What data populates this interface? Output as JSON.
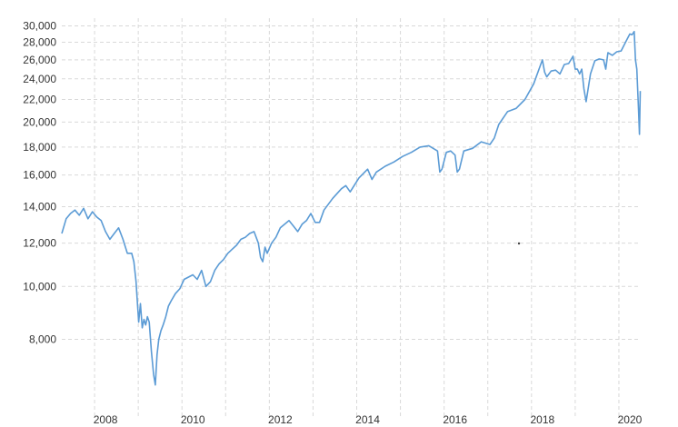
{
  "chart_data": {
    "type": "line",
    "title": "",
    "xlabel": "",
    "ylabel": "",
    "y_scale": "log",
    "grid": true,
    "legend": "none",
    "color": "#5b9bd5",
    "xlim": [
      2007.0,
      2020.25
    ],
    "ylim": [
      6200,
      31000
    ],
    "x_ticks": [
      2008,
      2010,
      2012,
      2014,
      2016,
      2018,
      2020
    ],
    "x_tick_labels": [
      "2008",
      "2010",
      "2012",
      "2014",
      "2016",
      "2018",
      "2020"
    ],
    "y_ticks": [
      8000,
      10000,
      12000,
      14000,
      16000,
      18000,
      20000,
      22000,
      24000,
      26000,
      28000,
      30000
    ],
    "y_tick_labels": [
      "8,000",
      "10,000",
      "12,000",
      "14,000",
      "16,000",
      "18,000",
      "20,000",
      "22,000",
      "24,000",
      "26,000",
      "28,000",
      "30,000"
    ],
    "series": [
      {
        "x": [
          2007.0,
          2007.1,
          2007.2,
          2007.3,
          2007.4,
          2007.5,
          2007.6,
          2007.7,
          2007.8,
          2007.9,
          2008.0,
          2008.1,
          2008.2,
          2008.3,
          2008.4,
          2008.5,
          2008.6,
          2008.65,
          2008.7,
          2008.72,
          2008.76,
          2008.8,
          2008.84,
          2008.88,
          2008.92,
          2008.96,
          2009.0,
          2009.05,
          2009.1,
          2009.14,
          2009.18,
          2009.22,
          2009.27,
          2009.32,
          2009.38,
          2009.44,
          2009.5,
          2009.6,
          2009.7,
          2009.8,
          2009.9,
          2010.0,
          2010.1,
          2010.2,
          2010.3,
          2010.4,
          2010.5,
          2010.6,
          2010.7,
          2010.8,
          2010.9,
          2011.0,
          2011.1,
          2011.2,
          2011.3,
          2011.4,
          2011.5,
          2011.55,
          2011.6,
          2011.65,
          2011.7,
          2011.8,
          2011.9,
          2012.0,
          2012.1,
          2012.2,
          2012.3,
          2012.4,
          2012.5,
          2012.6,
          2012.7,
          2012.8,
          2012.9,
          2013.0,
          2013.2,
          2013.4,
          2013.5,
          2013.6,
          2013.8,
          2014.0,
          2014.1,
          2014.2,
          2014.4,
          2014.6,
          2014.8,
          2015.0,
          2015.2,
          2015.4,
          2015.5,
          2015.6,
          2015.65,
          2015.7,
          2015.8,
          2015.9,
          2016.0,
          2016.05,
          2016.1,
          2016.2,
          2016.4,
          2016.6,
          2016.8,
          2016.9,
          2017.0,
          2017.2,
          2017.4,
          2017.6,
          2017.8,
          2018.0,
          2018.05,
          2018.1,
          2018.2,
          2018.3,
          2018.4,
          2018.5,
          2018.6,
          2018.7,
          2018.75,
          2018.8,
          2018.85,
          2018.9,
          2018.95,
          2019.0,
          2019.1,
          2019.2,
          2019.3,
          2019.4,
          2019.45,
          2019.5,
          2019.6,
          2019.7,
          2019.8,
          2019.9,
          2020.0,
          2020.05,
          2020.1,
          2020.13,
          2020.16,
          2020.18,
          2020.2,
          2020.22,
          2020.24
        ],
        "y": [
          12500,
          13300,
          13600,
          13800,
          13500,
          13900,
          13300,
          13700,
          13400,
          13200,
          12600,
          12200,
          12500,
          12800,
          12200,
          11500,
          11500,
          11100,
          10200,
          9600,
          8600,
          9300,
          8400,
          8700,
          8500,
          8800,
          8600,
          7600,
          6900,
          6600,
          7500,
          8000,
          8300,
          8500,
          8800,
          9200,
          9400,
          9700,
          9900,
          10300,
          10400,
          10500,
          10300,
          10700,
          10000,
          10200,
          10700,
          11000,
          11200,
          11500,
          11700,
          11900,
          12200,
          12300,
          12500,
          12600,
          12000,
          11300,
          11100,
          11800,
          11500,
          12000,
          12300,
          12800,
          13000,
          13200,
          12900,
          12600,
          13000,
          13200,
          13600,
          13100,
          13100,
          13800,
          14500,
          15100,
          15300,
          14900,
          15800,
          16400,
          15700,
          16200,
          16600,
          16900,
          17300,
          17600,
          18000,
          18100,
          17900,
          17700,
          16200,
          16400,
          17600,
          17700,
          17400,
          16200,
          16400,
          17700,
          17900,
          18400,
          18200,
          18700,
          19800,
          20900,
          21200,
          22000,
          23500,
          26000,
          24700,
          24200,
          24800,
          24900,
          24500,
          25500,
          25600,
          26400,
          25000,
          25000,
          24500,
          25000,
          23000,
          21800,
          24500,
          25900,
          26100,
          26000,
          25000,
          26800,
          26500,
          26900,
          27000,
          28000,
          29000,
          28900,
          29300,
          26000,
          25000,
          23000,
          21000,
          19000,
          22800
        ]
      }
    ]
  }
}
